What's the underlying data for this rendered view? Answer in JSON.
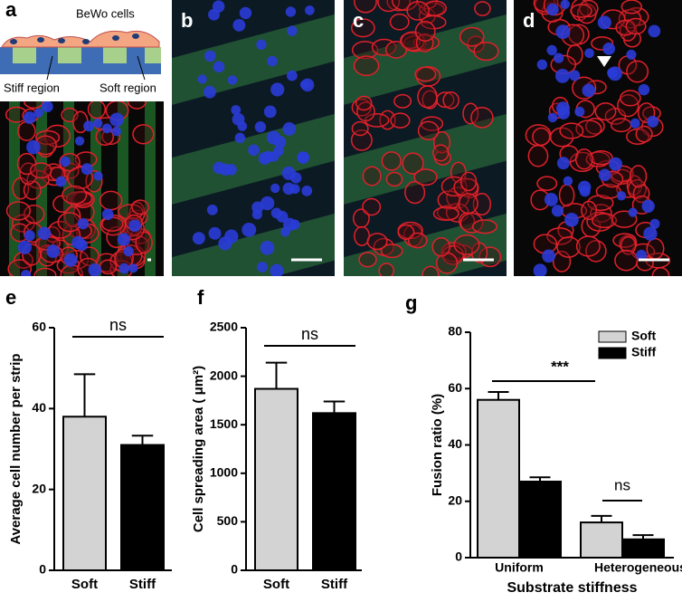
{
  "image_panels": [
    {
      "label": "a",
      "texts": [
        "BeWo cells",
        "Stiff region",
        "Soft region"
      ]
    },
    {
      "label": "b"
    },
    {
      "label": "c"
    },
    {
      "label": "d"
    }
  ],
  "chart_data": [
    {
      "type": "bar",
      "panel_label": "e",
      "ylabel": "Average cell number per strip",
      "categories": [
        "Soft",
        "Stiff"
      ],
      "values": [
        38,
        31
      ],
      "errors": [
        10.5,
        2.3
      ],
      "colors": [
        "#d3d3d3",
        "#000000"
      ],
      "ylim": [
        0,
        60
      ],
      "yticks": [
        0,
        20,
        40,
        60
      ],
      "annotations": [
        "ns"
      ]
    },
    {
      "type": "bar",
      "panel_label": "f",
      "ylabel": "Cell spreading area ( μm²)",
      "categories": [
        "Soft",
        "Stiff"
      ],
      "values": [
        1870,
        1620
      ],
      "errors": [
        270,
        120
      ],
      "colors": [
        "#d3d3d3",
        "#000000"
      ],
      "ylim": [
        0,
        2500
      ],
      "yticks": [
        0,
        500,
        1000,
        1500,
        2000,
        2500
      ],
      "annotations": [
        "ns"
      ]
    },
    {
      "type": "grouped-bar",
      "panel_label": "g",
      "ylabel": "Fusion ratio (%)",
      "xlabel": "Substrate stiffness",
      "categories": [
        "Uniform",
        "Heterogeneous"
      ],
      "series": [
        {
          "name": "Soft",
          "color": "#d3d3d3",
          "values": [
            56,
            12.5
          ],
          "errors": [
            2.8,
            2.3
          ]
        },
        {
          "name": "Stiff",
          "color": "#000000",
          "values": [
            27,
            6.5
          ],
          "errors": [
            1.5,
            1.5
          ]
        }
      ],
      "ylim": [
        0,
        80
      ],
      "yticks": [
        0,
        20,
        40,
        60,
        80
      ],
      "legend": "top-right",
      "annotations": [
        "***",
        "ns"
      ]
    }
  ]
}
